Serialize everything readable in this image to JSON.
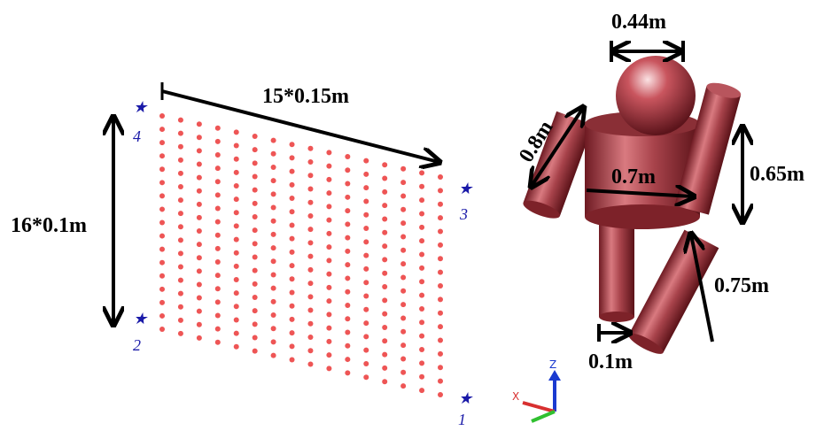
{
  "grid_labels": {
    "width": "15*0.15m",
    "height": "16*0.1m"
  },
  "corners": [
    "1",
    "2",
    "3",
    "4"
  ],
  "figure_labels": {
    "head": "0.44m",
    "arm": "0.8m",
    "body_width": "0.7m",
    "body_height": "0.65m",
    "leg": "0.75m",
    "leg_width": "0.1m"
  },
  "axes": {
    "z": "Z",
    "x": "X"
  }
}
